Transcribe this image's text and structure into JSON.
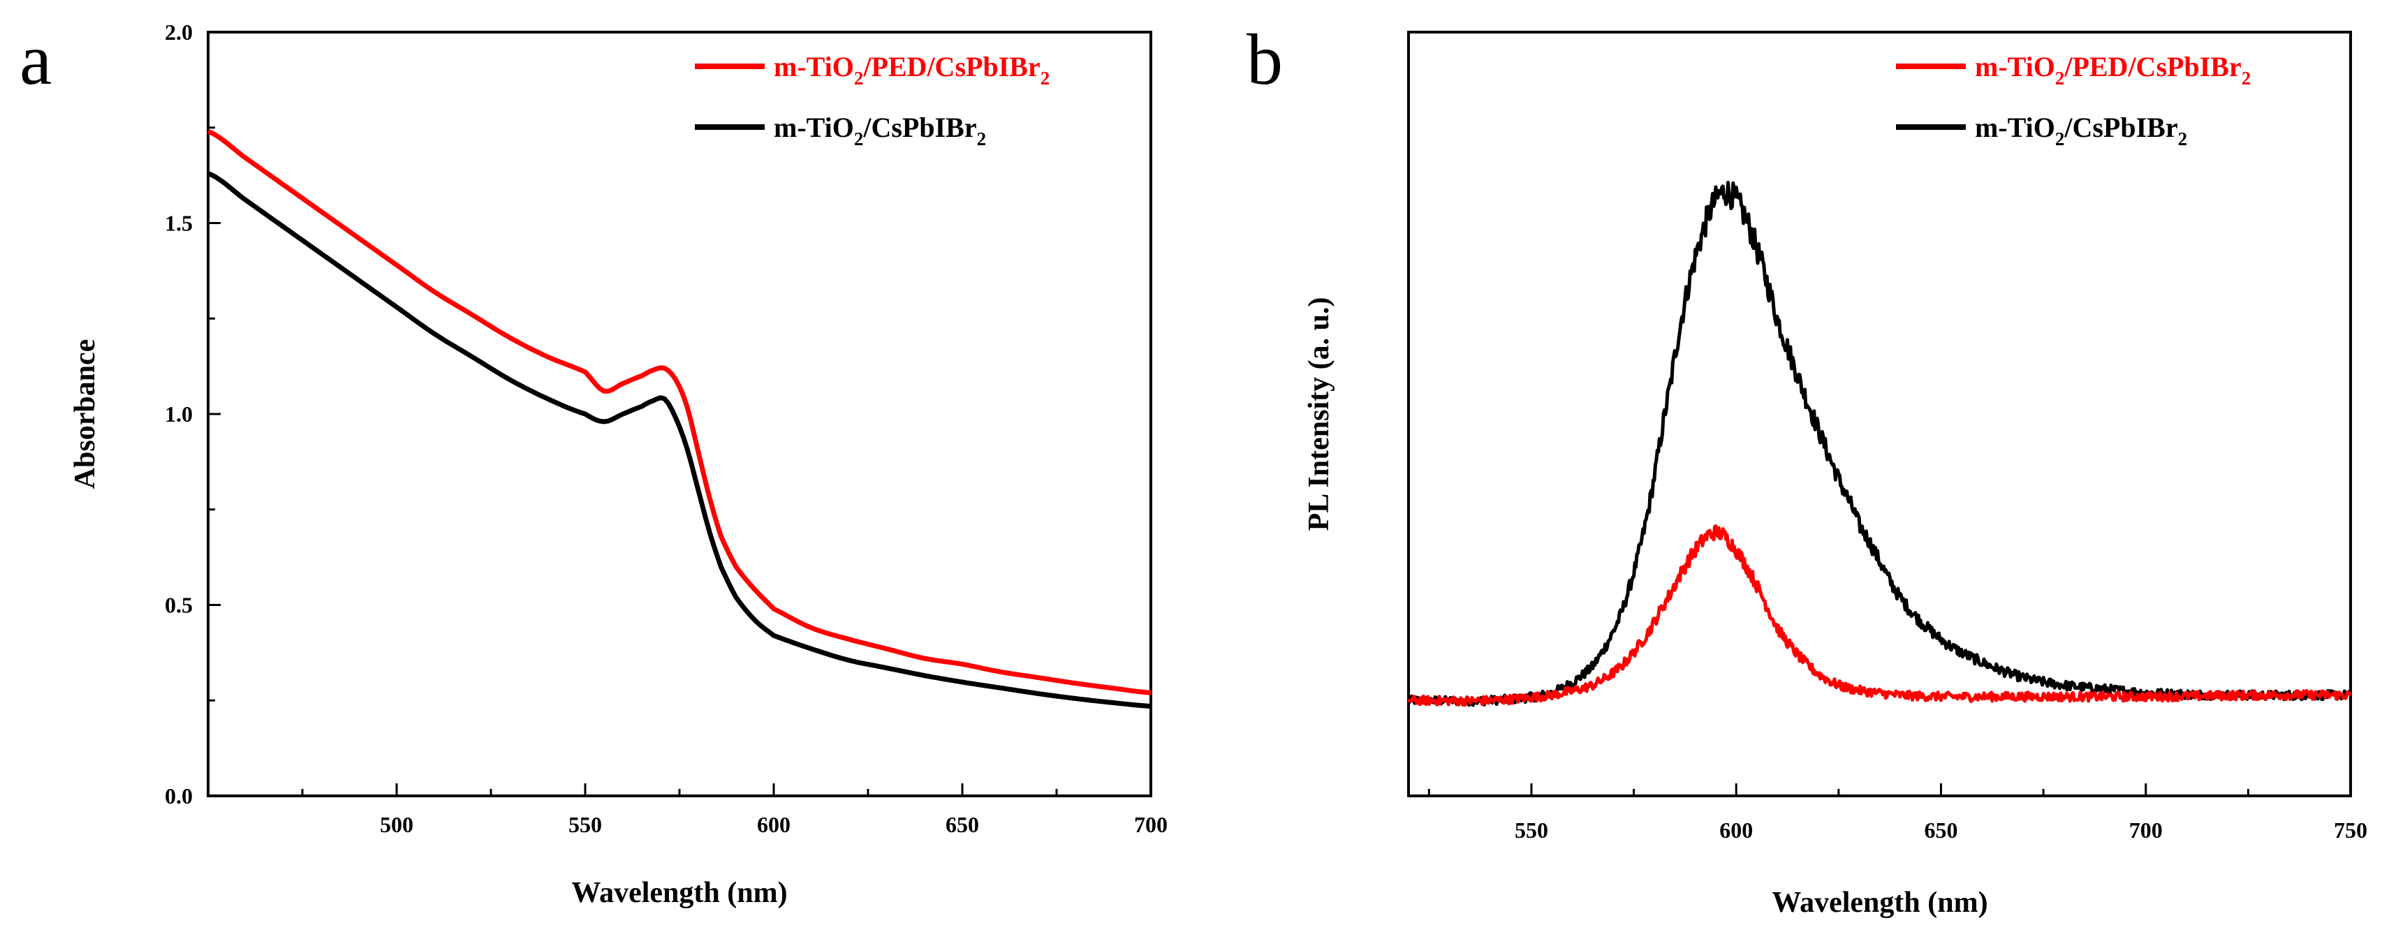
{
  "chart_data": [
    {
      "panel": "a",
      "type": "line",
      "title": "",
      "xlabel": "Wavelength (nm)",
      "ylabel": "Absorbance",
      "xlim": [
        450,
        700
      ],
      "ylim": [
        0.0,
        2.0
      ],
      "xticks": [
        500,
        550,
        600,
        650,
        700
      ],
      "yticks": [
        0.0,
        0.5,
        1.0,
        1.5,
        2.0
      ],
      "xtick_labels": [
        "500",
        "550",
        "600",
        "650",
        "700"
      ],
      "ytick_labels": [
        "0.0",
        "0.5",
        "1.0",
        "1.5",
        "2.0"
      ],
      "legend_position": "top-right",
      "grid": false,
      "series": [
        {
          "name_parts": [
            "m-TiO",
            "2",
            "/PED/CsPbIBr",
            "2"
          ],
          "color": "#ff0000",
          "x": [
            450,
            460,
            470,
            480,
            490,
            500,
            510,
            520,
            530,
            540,
            550,
            555,
            560,
            565,
            568,
            571,
            574,
            577,
            580,
            583,
            586,
            590,
            595,
            600,
            610,
            620,
            630,
            640,
            650,
            660,
            670,
            680,
            690,
            700
          ],
          "y": [
            1.74,
            1.67,
            1.6,
            1.53,
            1.46,
            1.39,
            1.32,
            1.26,
            1.2,
            1.15,
            1.11,
            1.06,
            1.08,
            1.1,
            1.115,
            1.12,
            1.09,
            1.02,
            0.9,
            0.78,
            0.68,
            0.6,
            0.54,
            0.49,
            0.44,
            0.41,
            0.385,
            0.36,
            0.345,
            0.325,
            0.31,
            0.295,
            0.282,
            0.27
          ]
        },
        {
          "name_parts": [
            "m-TiO",
            "2",
            "/CsPbIBr",
            "2"
          ],
          "color": "#000000",
          "x": [
            450,
            460,
            470,
            480,
            490,
            500,
            510,
            520,
            530,
            540,
            550,
            555,
            560,
            565,
            568,
            571,
            574,
            577,
            580,
            583,
            586,
            590,
            595,
            600,
            610,
            620,
            630,
            640,
            650,
            660,
            670,
            680,
            690,
            700
          ],
          "y": [
            1.63,
            1.56,
            1.49,
            1.42,
            1.35,
            1.28,
            1.21,
            1.15,
            1.09,
            1.04,
            1.0,
            0.98,
            1.0,
            1.02,
            1.035,
            1.04,
            0.99,
            0.91,
            0.8,
            0.69,
            0.6,
            0.52,
            0.46,
            0.42,
            0.385,
            0.355,
            0.335,
            0.315,
            0.298,
            0.283,
            0.268,
            0.255,
            0.244,
            0.235
          ]
        }
      ]
    },
    {
      "panel": "b",
      "type": "line",
      "title": "",
      "xlabel": "Wavelength (nm)",
      "ylabel": "PL Intensity (a. u.)",
      "xlim": [
        520,
        750
      ],
      "ylim": [
        0,
        100
      ],
      "xticks": [
        550,
        600,
        650,
        700,
        750
      ],
      "yticks": [],
      "xtick_labels": [
        "550",
        "600",
        "650",
        "700",
        "750"
      ],
      "ytick_labels": [],
      "legend_position": "top-right",
      "grid": false,
      "series": [
        {
          "name_parts": [
            "m-TiO",
            "2",
            "/PED/CsPbIBr",
            "2"
          ],
          "color": "#ff0000",
          "x": [
            520,
            540,
            555,
            565,
            572,
            578,
            584,
            588,
            592,
            595,
            598,
            602,
            606,
            610,
            615,
            620,
            625,
            630,
            640,
            650,
            670,
            700,
            730,
            750
          ],
          "y": [
            12.5,
            12.5,
            13.2,
            14.5,
            17.0,
            21.0,
            26.5,
            30.5,
            33.5,
            34.5,
            33.5,
            30.5,
            26.5,
            22.0,
            18.5,
            16.0,
            14.5,
            13.8,
            13.2,
            13.0,
            13.0,
            13.0,
            13.2,
            13.2
          ]
        },
        {
          "name_parts": [
            "m-TiO",
            "2",
            "/CsPbIBr",
            "2"
          ],
          "color": "#000000",
          "x": [
            520,
            540,
            555,
            565,
            572,
            578,
            584,
            588,
            592,
            595,
            598,
            602,
            606,
            610,
            615,
            620,
            625,
            630,
            640,
            650,
            660,
            670,
            680,
            690,
            700,
            720,
            750
          ],
          "y": [
            12.5,
            12.5,
            13.5,
            17.0,
            24.0,
            36.0,
            54.0,
            66.0,
            74.0,
            78.0,
            79.0,
            76.0,
            70.0,
            62.5,
            55.0,
            48.0,
            41.5,
            35.5,
            26.0,
            20.5,
            17.5,
            15.5,
            14.5,
            14.0,
            13.5,
            13.2,
            13.2
          ]
        }
      ]
    }
  ]
}
